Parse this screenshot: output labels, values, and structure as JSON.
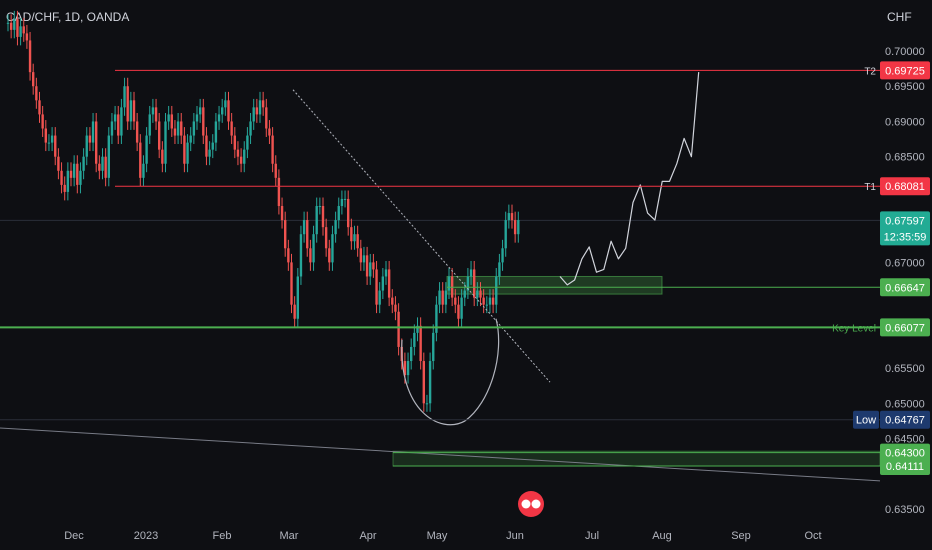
{
  "header": {
    "symbol": "CAD/CHF, 1D, OANDA",
    "currency": "CHF"
  },
  "colors": {
    "up": "#26a69a",
    "down": "#ef5350",
    "red_level": "#f23645",
    "green_level": "#4caf50",
    "teal_badge": "#22ab94",
    "navy_badge": "#1e3a6e"
  },
  "icon": "tradingview-logo-icon",
  "chart_data": {
    "type": "candlestick",
    "y_axis": {
      "min": 0.635,
      "max": 0.7025,
      "ticks": [
        "0.70000",
        "0.69500",
        "0.69000",
        "0.68500",
        "0.67000",
        "0.65500",
        "0.65000",
        "0.64500",
        "0.63500"
      ],
      "tick_values": [
        0.7,
        0.695,
        0.69,
        0.685,
        0.67,
        0.655,
        0.65,
        0.645,
        0.635
      ]
    },
    "x_axis": {
      "labels": [
        "Dec",
        "2023",
        "Feb",
        "Mar",
        "Apr",
        "May",
        "Jun",
        "Jul",
        "Aug",
        "Sep",
        "Oct"
      ]
    },
    "levels": [
      {
        "value": 0.69725,
        "text": "0.69725",
        "tag": "T2",
        "color": "red"
      },
      {
        "value": 0.68081,
        "text": "0.68081",
        "tag": "T1",
        "color": "red"
      },
      {
        "value": 0.67597,
        "text": "0.67597",
        "tag": "",
        "color": "teal",
        "countdown": "12:35:59"
      },
      {
        "value": 0.66647,
        "text": "0.66647",
        "tag": "",
        "color": "green"
      },
      {
        "value": 0.66077,
        "text": "0.66077",
        "tag": "Key Level",
        "color": "green"
      },
      {
        "value": 0.64767,
        "text": "0.64767",
        "tag": "Low",
        "color": "navy"
      },
      {
        "value": 0.643,
        "text": "0.64300",
        "tag": "",
        "color": "green"
      },
      {
        "value": 0.64111,
        "text": "0.64111",
        "tag": "",
        "color": "green"
      }
    ],
    "closes": [
      0.704,
      0.703,
      0.7045,
      0.702,
      0.7035,
      0.7025,
      0.7015,
      0.697,
      0.695,
      0.693,
      0.691,
      0.689,
      0.687,
      0.687,
      0.688,
      0.685,
      0.683,
      0.681,
      0.68,
      0.683,
      0.682,
      0.684,
      0.681,
      0.683,
      0.685,
      0.688,
      0.687,
      0.69,
      0.684,
      0.683,
      0.685,
      0.682,
      0.688,
      0.69,
      0.691,
      0.688,
      0.692,
      0.695,
      0.69,
      0.693,
      0.69,
      0.687,
      0.682,
      0.684,
      0.688,
      0.691,
      0.692,
      0.69,
      0.686,
      0.684,
      0.69,
      0.691,
      0.689,
      0.688,
      0.69,
      0.688,
      0.684,
      0.687,
      0.688,
      0.69,
      0.691,
      0.692,
      0.688,
      0.685,
      0.686,
      0.687,
      0.69,
      0.691,
      0.692,
      0.693,
      0.69,
      0.688,
      0.686,
      0.685,
      0.684,
      0.686,
      0.688,
      0.69,
      0.692,
      0.691,
      0.693,
      0.692,
      0.689,
      0.688,
      0.684,
      0.682,
      0.678,
      0.676,
      0.672,
      0.67,
      0.664,
      0.662,
      0.668,
      0.674,
      0.676,
      0.672,
      0.67,
      0.674,
      0.678,
      0.678,
      0.675,
      0.672,
      0.67,
      0.674,
      0.676,
      0.678,
      0.679,
      0.679,
      0.675,
      0.673,
      0.674,
      0.672,
      0.67,
      0.671,
      0.668,
      0.67,
      0.669,
      0.664,
      0.666,
      0.668,
      0.669,
      0.665,
      0.664,
      0.663,
      0.658,
      0.656,
      0.654,
      0.656,
      0.658,
      0.66,
      0.661,
      0.656,
      0.65,
      0.65,
      0.656,
      0.66,
      0.664,
      0.666,
      0.664,
      0.666,
      0.668,
      0.665,
      0.664,
      0.662,
      0.665,
      0.666,
      0.668,
      0.669,
      0.665,
      0.666,
      0.665,
      0.664,
      0.664,
      0.665,
      0.664,
      0.668,
      0.67,
      0.672,
      0.676,
      0.677,
      0.676,
      0.674,
      0.676
    ],
    "forecast": [
      0.668,
      0.6668,
      0.6675,
      0.6705,
      0.6722,
      0.6686,
      0.669,
      0.673,
      0.6705,
      0.672,
      0.6785,
      0.681,
      0.677,
      0.676,
      0.6815,
      0.6815,
      0.684,
      0.6876,
      0.685,
      0.697
    ],
    "annotations": [
      "trendline",
      "key level",
      "support zone",
      "rounded bottom"
    ]
  }
}
